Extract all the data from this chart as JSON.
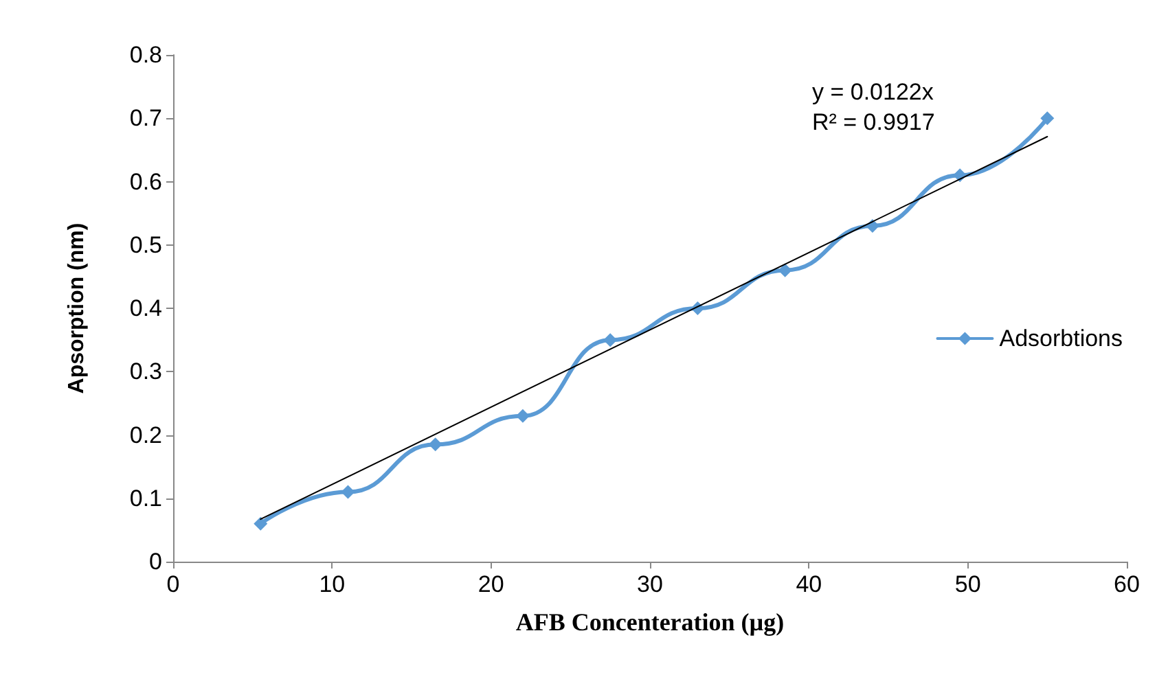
{
  "chart_data": {
    "type": "line",
    "xlabel": "AFB Concenteration (µg)",
    "ylabel": "Apsorption (nm)",
    "xlim": [
      0,
      60
    ],
    "xticks": [
      0,
      10,
      20,
      30,
      40,
      50,
      60
    ],
    "ylim": [
      0,
      0.8
    ],
    "yticks": [
      0,
      0.1,
      0.2,
      0.3,
      0.4,
      0.5,
      0.6,
      0.7,
      0.8
    ],
    "grid": false,
    "legend": "right",
    "marker": "diamond",
    "annotations": [
      "y = 0.0122x",
      "R² = 0.9917"
    ],
    "series": [
      {
        "name": "Adsorbtions",
        "color": "#5b9bd5",
        "x": [
          5.5,
          11,
          16.5,
          22,
          27.5,
          33,
          38.5,
          44,
          49.5,
          55
        ],
        "values": [
          0.06,
          0.11,
          0.185,
          0.23,
          0.35,
          0.4,
          0.46,
          0.53,
          0.61,
          0.7
        ]
      },
      {
        "type": "line",
        "color": "#000000",
        "marker": "none",
        "x": [
          5.5,
          55
        ],
        "values": [
          0.067,
          0.671
        ]
      }
    ]
  }
}
